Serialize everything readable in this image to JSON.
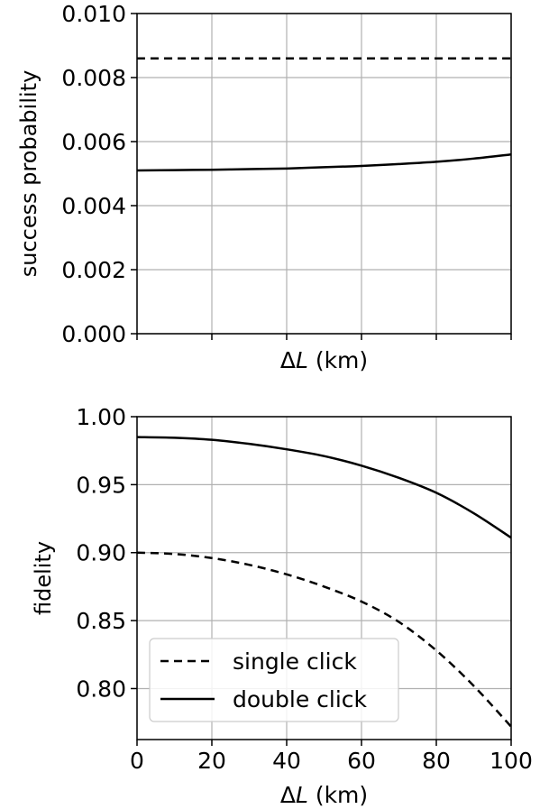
{
  "chart_data": [
    {
      "type": "line",
      "title": "",
      "xlabel": "ΔL (km)",
      "ylabel": "success probability",
      "xlim": [
        0,
        100
      ],
      "ylim": [
        0,
        0.01
      ],
      "x_ticks": [
        0,
        20,
        40,
        60,
        80,
        100
      ],
      "x_tick_labels_shown": false,
      "y_ticks": [
        0.0,
        0.002,
        0.004,
        0.006,
        0.008,
        0.01
      ],
      "y_tick_labels": [
        "0.000",
        "0.002",
        "0.004",
        "0.006",
        "0.008",
        "0.010"
      ],
      "grid": true,
      "legend": null,
      "series": [
        {
          "style": "dashed",
          "x": [
            0,
            10,
            20,
            30,
            40,
            50,
            60,
            70,
            80,
            90,
            100
          ],
          "values": [
            0.0086,
            0.0086,
            0.0086,
            0.0086,
            0.0086,
            0.0086,
            0.0086,
            0.0086,
            0.0086,
            0.0086,
            0.0086
          ]
        },
        {
          "style": "solid",
          "x": [
            0,
            10,
            20,
            30,
            40,
            50,
            60,
            70,
            80,
            90,
            100
          ],
          "values": [
            0.0051,
            0.00511,
            0.00512,
            0.00514,
            0.00516,
            0.0052,
            0.00524,
            0.0053,
            0.00537,
            0.00547,
            0.0056
          ]
        }
      ]
    },
    {
      "type": "line",
      "title": "",
      "xlabel": "ΔL (km)",
      "ylabel": "fidelity",
      "xlim": [
        0,
        100
      ],
      "ylim": [
        0.7625,
        1.0
      ],
      "x_ticks": [
        0,
        20,
        40,
        60,
        80,
        100
      ],
      "x_tick_labels": [
        "0",
        "20",
        "40",
        "60",
        "80",
        "100"
      ],
      "y_ticks": [
        0.8,
        0.85,
        0.9,
        0.95,
        1.0
      ],
      "y_tick_labels": [
        "0.80",
        "0.85",
        "0.90",
        "0.95",
        "1.00"
      ],
      "grid": true,
      "legend": "bottom-left",
      "series": [
        {
          "name": "single click",
          "style": "dashed",
          "x": [
            0,
            10,
            20,
            30,
            40,
            50,
            60,
            70,
            80,
            90,
            100
          ],
          "values": [
            0.9,
            0.899,
            0.896,
            0.891,
            0.884,
            0.875,
            0.864,
            0.849,
            0.828,
            0.802,
            0.772
          ]
        },
        {
          "name": "double click",
          "style": "solid",
          "x": [
            0,
            10,
            20,
            30,
            40,
            50,
            60,
            70,
            80,
            90,
            100
          ],
          "values": [
            0.985,
            0.9845,
            0.983,
            0.98,
            0.976,
            0.971,
            0.964,
            0.955,
            0.944,
            0.929,
            0.911
          ]
        }
      ]
    }
  ]
}
